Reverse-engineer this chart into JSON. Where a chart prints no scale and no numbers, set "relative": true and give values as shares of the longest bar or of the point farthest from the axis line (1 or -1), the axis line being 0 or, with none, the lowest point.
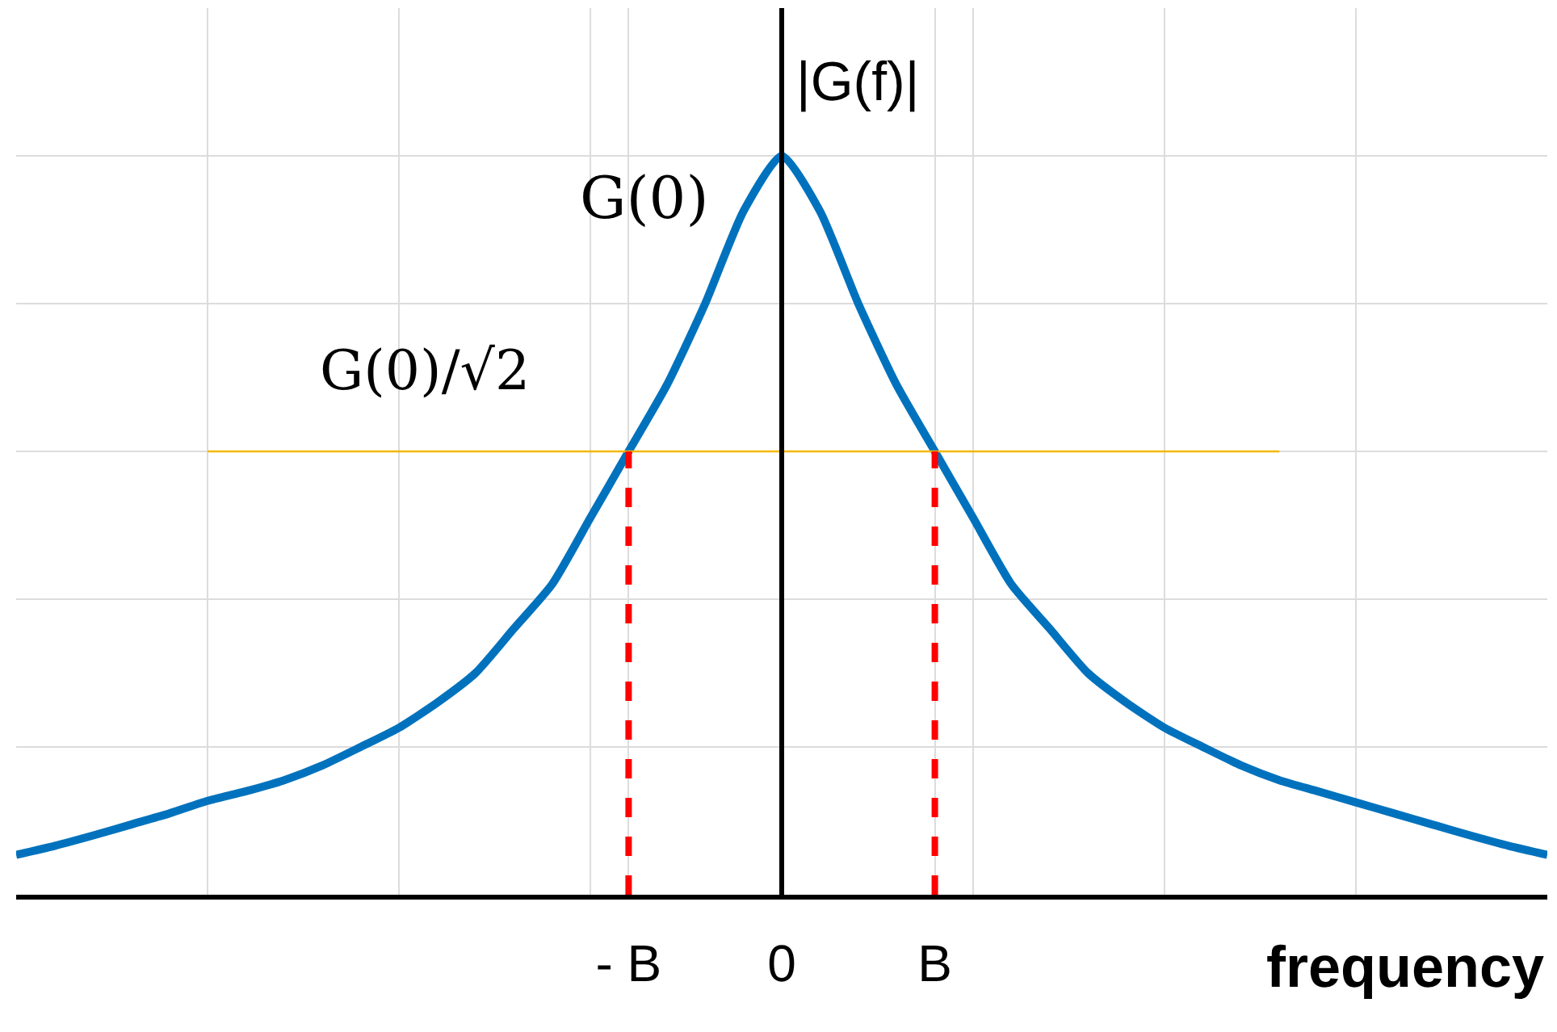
{
  "chart_data": {
    "type": "line",
    "relative": true,
    "xlabel": "frequency",
    "ylabel": "|G(f)|",
    "categories": [
      null,
      null,
      null,
      null,
      null,
      null,
      null,
      null,
      null,
      null,
      null,
      null,
      null,
      null,
      null,
      null,
      "- B",
      null,
      null,
      null,
      "0",
      null,
      null,
      null,
      "B",
      null,
      null,
      null,
      null,
      null,
      null,
      null,
      null,
      null,
      null,
      null,
      null,
      null,
      null,
      null,
      null
    ],
    "grid": true,
    "marker": "none",
    "series": [
      {
        "color": "#0072bd",
        "line_style": "solid",
        "values": [
          0.054,
          0.066,
          0.08,
          0.095,
          0.11,
          0.127,
          0.14,
          0.155,
          0.175,
          0.2,
          0.226,
          0.26,
          0.3,
          0.36,
          0.42,
          0.51,
          0.6,
          0.69,
          0.8,
          0.925,
          1,
          0.925,
          0.8,
          0.69,
          0.6,
          0.51,
          0.42,
          0.36,
          0.3,
          0.26,
          0.226,
          0.2,
          0.175,
          0.155,
          0.14,
          0.125,
          0.11,
          0.095,
          0.08,
          0.066,
          0.054
        ]
      }
    ],
    "ref_lines": [
      {
        "axis": "y",
        "value": 0.6,
        "label": "G(0)/√2",
        "color": "#f5b800",
        "line_style": "solid"
      },
      {
        "axis": "x",
        "value": "- B",
        "label": null,
        "color": "#ff0000",
        "line_style": "dashed"
      },
      {
        "axis": "x",
        "value": "B",
        "label": null,
        "color": "#ff0000",
        "line_style": "dashed"
      }
    ],
    "annotations": [
      "G(0)"
    ]
  }
}
